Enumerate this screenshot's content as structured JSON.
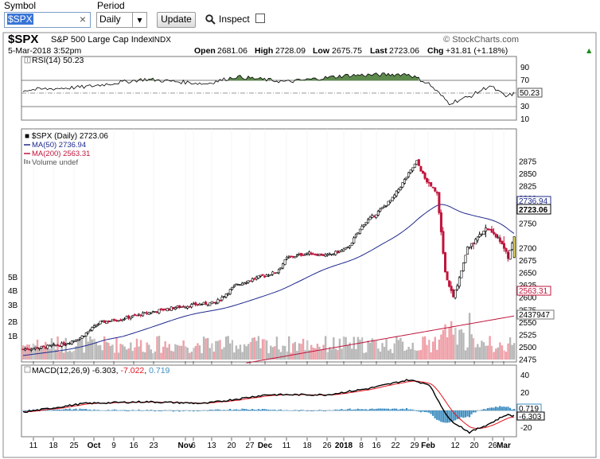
{
  "toolbar": {
    "symbol_label": "Symbol",
    "symbol_value": "$SPX",
    "clear_glyph": "×",
    "period_label": "Period",
    "period_value": "Daily",
    "dropdown_glyph": "▾",
    "update_label": "Update",
    "inspect_label": "Inspect"
  },
  "header": {
    "ticker": "$SPX",
    "name": "S&P 500 Large Cap Index",
    "exchange": "INDX",
    "brand": "© StockCharts.com",
    "datetime": "5-Mar-2018 3:52pm",
    "open_label": "Open",
    "open": "2681.06",
    "high_label": "High",
    "high": "2728.09",
    "low_label": "Low",
    "low": "2675.75",
    "last_label": "Last",
    "last": "2723.06",
    "chg_label": "Chg",
    "chg": "+31.81 (+1.18%)",
    "chg_arrow": "▲"
  },
  "rsi": {
    "label": "RSI(14) 50.23",
    "value_box": "50.23",
    "ticks": [
      "90",
      "70",
      "50",
      "30",
      "10"
    ]
  },
  "price": {
    "legend_main": "$SPX (Daily) 2723.06",
    "legend_ma50": "MA(50) 2736.94",
    "legend_ma200": "MA(200) 2563.31",
    "legend_volume": "Volume undef",
    "ticks": [
      "2875",
      "2850",
      "2825",
      "2800",
      "2775",
      "2750",
      "2725",
      "2700",
      "2675",
      "2650",
      "2625",
      "2600",
      "2575",
      "2550",
      "2525",
      "2500",
      "2475"
    ],
    "ma50_box": "2736.94",
    "last_box": "2723.06",
    "ma200_box": "2563.31",
    "vol_box": "2437947",
    "volume_ticks": [
      "5B",
      "4B",
      "3B",
      "2B",
      "1B"
    ]
  },
  "macd": {
    "label_prefix": "MACD(12,26,9)",
    "macd_val": "-6.303",
    "signal_val": "-7.022",
    "hist_val": "0.719",
    "ticks": [
      "40",
      "20",
      "-20"
    ],
    "box_hist": "0.719",
    "box_macd": "-6.303"
  },
  "xaxis": [
    "11",
    "18",
    "25",
    "Oct",
    "9",
    "16",
    "23",
    "Nov",
    "6",
    "13",
    "20",
    "27",
    "Dec",
    "11",
    "18",
    "26",
    "2018",
    "8",
    "16",
    "22",
    "29",
    "Feb",
    "12",
    "20",
    "26",
    "Mar"
  ],
  "colors": {
    "up": "#000000",
    "down": "#c0143c",
    "ma50": "#1f2a8c",
    "ma200": "#c0143c",
    "rsi_fill": "#5d8a4d",
    "macd_hist": "#3f8fc2",
    "macd_signal": "#e0141e",
    "volume_up": "#b8b8b8",
    "volume_down": "#f0a0a8"
  }
}
